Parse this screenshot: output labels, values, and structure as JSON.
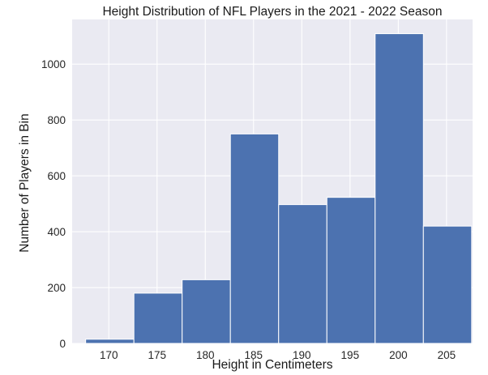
{
  "chart_data": {
    "type": "bar",
    "histogram": true,
    "title": "Height Distribution of NFL Players in the 2021 - 2022 Season",
    "xlabel": "Height in Centimeters",
    "ylabel": "Number of Players in Bin",
    "xlim": [
      166.2,
      207.7
    ],
    "ylim": [
      0,
      1160
    ],
    "xticks": [
      170,
      175,
      180,
      185,
      190,
      195,
      200,
      205
    ],
    "yticks": [
      0,
      200,
      400,
      600,
      800,
      1000
    ],
    "grid": true,
    "background": "#eaeaf2",
    "bar_color": "#4c72b0",
    "bin_edges": [
      167.6,
      172.6,
      177.6,
      182.6,
      187.6,
      192.6,
      197.6,
      202.6,
      207.6
    ],
    "bins": [
      {
        "x0": 167.6,
        "x1": 172.6,
        "value": 15
      },
      {
        "x0": 172.6,
        "x1": 177.6,
        "value": 180
      },
      {
        "x0": 177.6,
        "x1": 182.6,
        "value": 228
      },
      {
        "x0": 182.6,
        "x1": 187.6,
        "value": 750
      },
      {
        "x0": 187.6,
        "x1": 192.6,
        "value": 497
      },
      {
        "x0": 192.6,
        "x1": 197.6,
        "value": 523
      },
      {
        "x0": 197.6,
        "x1": 202.6,
        "value": 1109
      },
      {
        "x0": 202.6,
        "x1": 207.6,
        "value": 420
      }
    ]
  }
}
